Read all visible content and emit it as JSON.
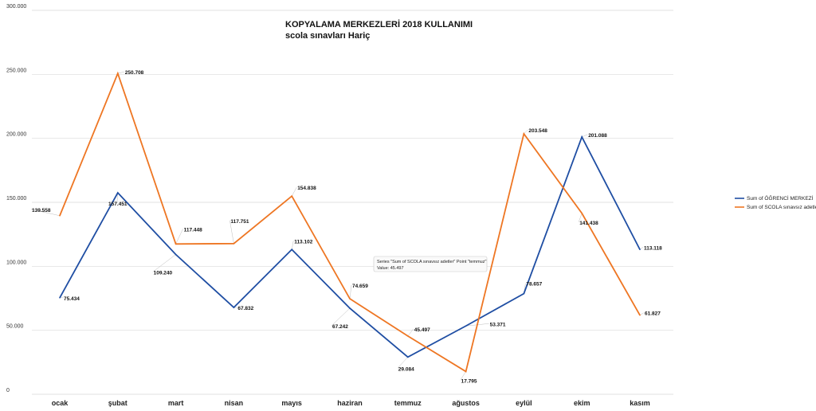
{
  "chart_data": {
    "type": "line",
    "title": "KOPYALAMA MERKEZLERİ 2018 KULLANIMI",
    "subtitle": "scola sınavları Hariç",
    "categories": [
      "ocak",
      "şubat",
      "mart",
      "nisan",
      "mayıs",
      "haziran",
      "temmuz",
      "ağustos",
      "eylül",
      "ekim",
      "kasım"
    ],
    "series": [
      {
        "name": "Sum of ÖĞRENCİ MERKEZİ",
        "color": "#1f4ea3",
        "values": [
          75434,
          157451,
          109240,
          67832,
          113102,
          67242,
          29084,
          53371,
          78657,
          201088,
          113118
        ],
        "labels": [
          "75.434",
          "157.451",
          "109.240",
          "67.832",
          "113.102",
          "67.242",
          "29.084",
          "53.371",
          "78.657",
          "201.088",
          "113.118"
        ]
      },
      {
        "name": "Sum of SCOLA sınavsız adetler",
        "color": "#ee7623",
        "values": [
          139558,
          250708,
          117448,
          117751,
          154838,
          74659,
          45497,
          17795,
          203548,
          141438,
          61827
        ],
        "labels": [
          "139.558",
          "250.708",
          "117.448",
          "117.751",
          "154.838",
          "74.659",
          "45.497",
          "17.795",
          "203.548",
          "141.438",
          "61.827"
        ]
      }
    ],
    "ylim": [
      0,
      300000
    ],
    "yticks": [
      0,
      50000,
      100000,
      150000,
      200000,
      250000,
      300000
    ],
    "ytick_labels": [
      "0",
      "50.000",
      "100.000",
      "150.000",
      "200.000",
      "250.000",
      "300.000"
    ],
    "grid": true,
    "legend_position": "right",
    "tooltip": {
      "line1": "Series \"Sum of SCOLA sınavsız adetler\" Point \"temmuz\"",
      "line2": "Value: 45.497"
    }
  }
}
